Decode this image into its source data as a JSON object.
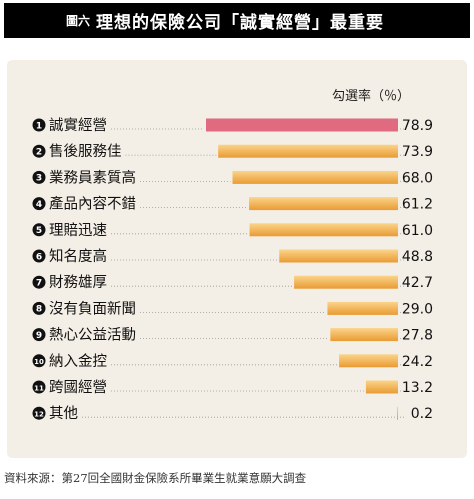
{
  "figure": {
    "label": "圖六",
    "title": "理想的保險公司「誠實經營」最重要"
  },
  "source": "資料來源：第27回全國財金保險系所畢業生就業意願大調查",
  "chart_data": {
    "type": "bar",
    "orientation": "horizontal",
    "value_header": "勾選率（％）",
    "categories": [
      "誠實經營",
      "售後服務佳",
      "業務員素質高",
      "產品內容不錯",
      "理賠迅速",
      "知名度高",
      "財務雄厚",
      "沒有負面新聞",
      "熱心公益活動",
      "納入金控",
      "跨國經營",
      "其他"
    ],
    "ranks": [
      "1",
      "2",
      "3",
      "4",
      "5",
      "6",
      "7",
      "8",
      "9",
      "10",
      "11",
      "12"
    ],
    "values": [
      78.9,
      73.9,
      68.0,
      61.2,
      61.0,
      48.8,
      42.7,
      29.0,
      27.8,
      24.2,
      13.2,
      0.2
    ],
    "value_labels": [
      "78.9",
      "73.9",
      "68.0",
      "61.2",
      "61.0",
      "48.8",
      "42.7",
      "29.0",
      "27.8",
      "24.2",
      "13.2",
      "0.2"
    ],
    "highlight_index": 0,
    "xlim": [
      0,
      78.9
    ],
    "colors": {
      "highlight": "#e06a80",
      "bar_top": "#fbd48a",
      "bar_bottom": "#e99b33",
      "panel": "#f4efe6",
      "leader": "#9a9a9a"
    }
  }
}
